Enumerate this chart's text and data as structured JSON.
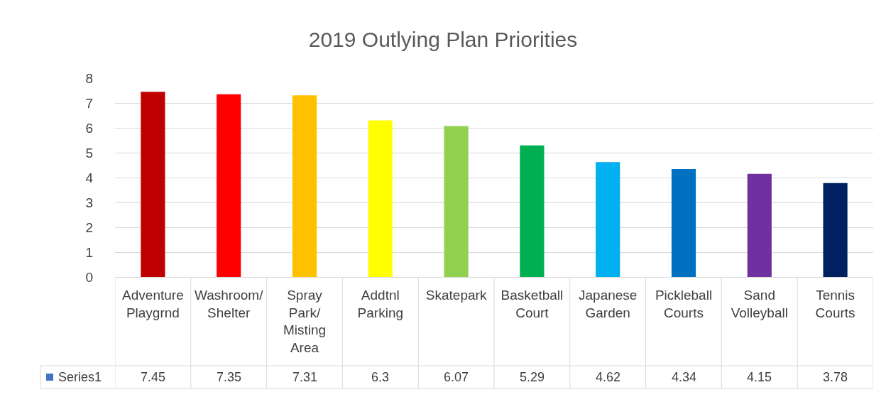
{
  "chart_data": {
    "type": "bar",
    "title": "2019 Outlying Plan Priorities",
    "categories": [
      "Adventure Playgrnd",
      "Washroom/ Shelter",
      "Spray Park/ Misting Area",
      "Addtnl Parking",
      "Skatepark",
      "Basketball Court",
      "Japanese Garden",
      "Pickleball Courts",
      "Sand Volleyball",
      "Tennis Courts"
    ],
    "series": [
      {
        "name": "Series1",
        "color": "#4472c4",
        "colors": [
          "#c00000",
          "#ff0000",
          "#ffc000",
          "#ffff00",
          "#92d050",
          "#00b050",
          "#00b0f0",
          "#0070c0",
          "#7030a0",
          "#002060"
        ],
        "values": [
          7.45,
          7.35,
          7.31,
          6.3,
          6.07,
          5.29,
          4.62,
          4.34,
          4.15,
          3.78
        ]
      }
    ],
    "ylim": [
      0,
      8
    ],
    "yticks": [
      0,
      1,
      2,
      3,
      4,
      5,
      6,
      7,
      8
    ],
    "grid": "y",
    "data_labels": true,
    "legend": false
  }
}
